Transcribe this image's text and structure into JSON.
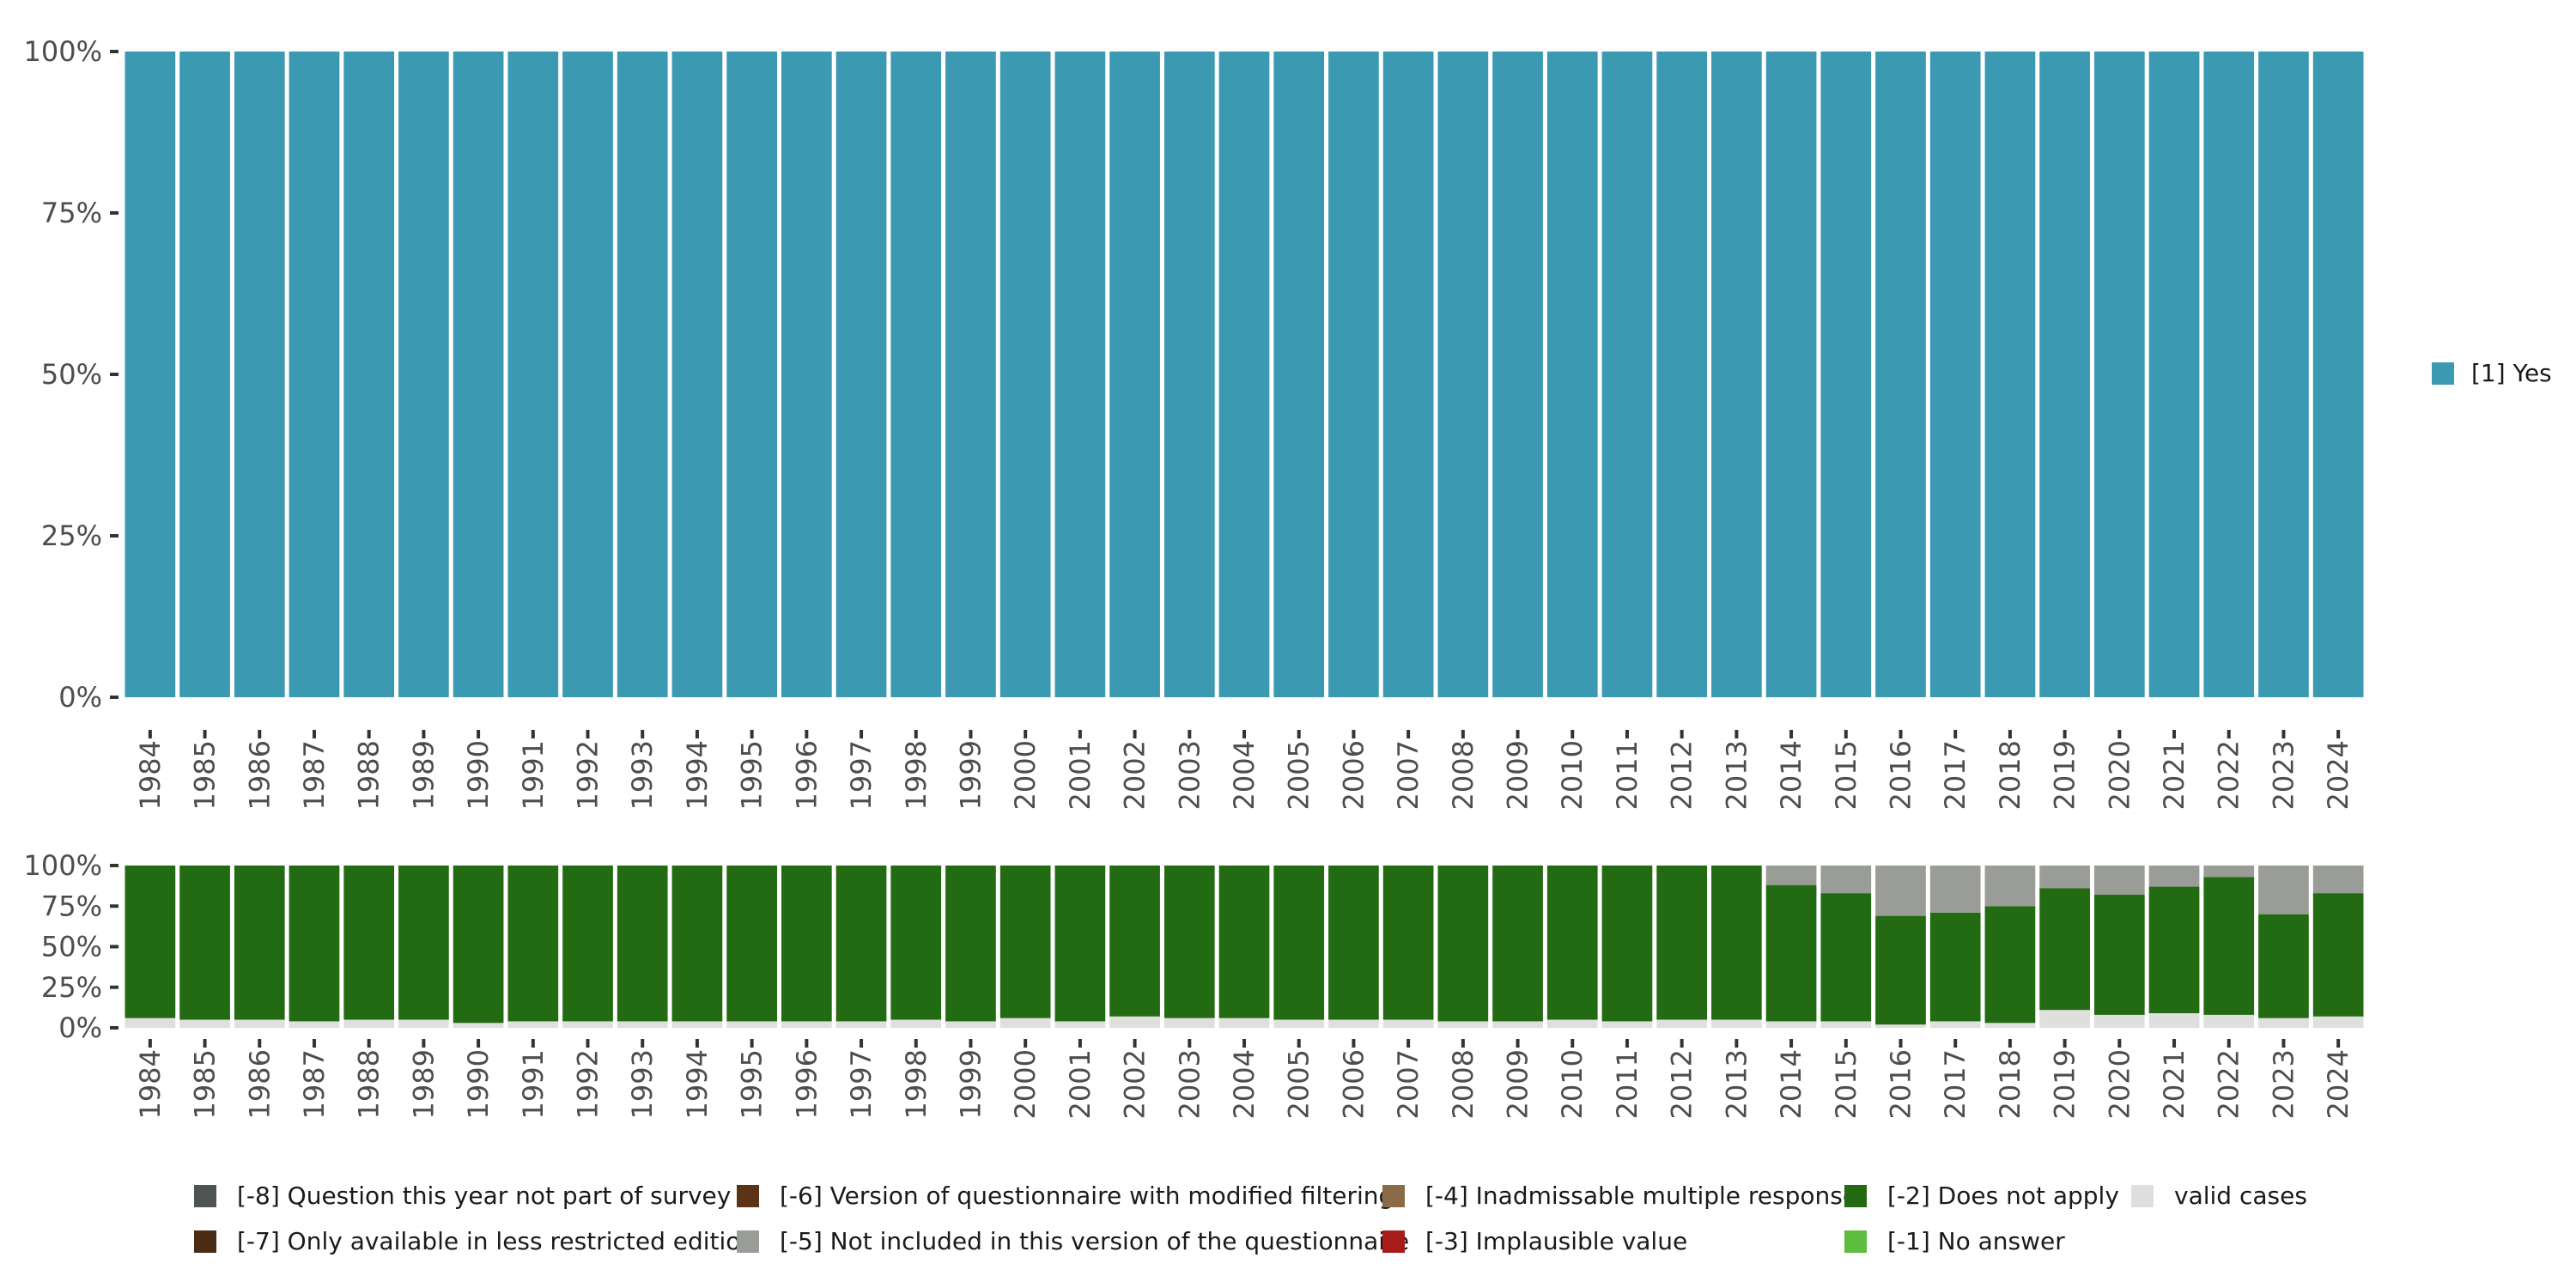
{
  "chart_data": [
    {
      "type": "bar",
      "stacked": true,
      "normalized": true,
      "categories": [
        "1984",
        "1985",
        "1986",
        "1987",
        "1988",
        "1989",
        "1990",
        "1991",
        "1992",
        "1993",
        "1994",
        "1995",
        "1996",
        "1997",
        "1998",
        "1999",
        "2000",
        "2001",
        "2002",
        "2003",
        "2004",
        "2005",
        "2006",
        "2007",
        "2008",
        "2009",
        "2010",
        "2011",
        "2012",
        "2013",
        "2014",
        "2015",
        "2016",
        "2017",
        "2018",
        "2019",
        "2020",
        "2021",
        "2022",
        "2023",
        "2024"
      ],
      "y_ticks": [
        "0%",
        "25%",
        "50%",
        "75%",
        "100%"
      ],
      "ylim": [
        0,
        1
      ],
      "series": [
        {
          "name": "[1] Yes",
          "color": "#3b9ab2",
          "values": [
            1,
            1,
            1,
            1,
            1,
            1,
            1,
            1,
            1,
            1,
            1,
            1,
            1,
            1,
            1,
            1,
            1,
            1,
            1,
            1,
            1,
            1,
            1,
            1,
            1,
            1,
            1,
            1,
            1,
            1,
            1,
            1,
            1,
            1,
            1,
            1,
            1,
            1,
            1,
            1,
            1
          ]
        }
      ],
      "legend": {
        "position": "right",
        "entries": [
          {
            "label": "[1] Yes",
            "color": "#3b9ab2"
          }
        ]
      }
    },
    {
      "type": "bar",
      "stacked": true,
      "normalized": true,
      "categories": [
        "1984",
        "1985",
        "1986",
        "1987",
        "1988",
        "1989",
        "1990",
        "1991",
        "1992",
        "1993",
        "1994",
        "1995",
        "1996",
        "1997",
        "1998",
        "1999",
        "2000",
        "2001",
        "2002",
        "2003",
        "2004",
        "2005",
        "2006",
        "2007",
        "2008",
        "2009",
        "2010",
        "2011",
        "2012",
        "2013",
        "2014",
        "2015",
        "2016",
        "2017",
        "2018",
        "2019",
        "2020",
        "2021",
        "2022",
        "2023",
        "2024"
      ],
      "y_ticks": [
        "0%",
        "25%",
        "50%",
        "75%",
        "100%"
      ],
      "ylim": [
        0,
        1
      ],
      "series": [
        {
          "name": "valid cases",
          "color": "#dfe0dd",
          "values": [
            0.06,
            0.05,
            0.05,
            0.04,
            0.05,
            0.05,
            0.03,
            0.04,
            0.04,
            0.04,
            0.04,
            0.04,
            0.04,
            0.04,
            0.05,
            0.04,
            0.06,
            0.04,
            0.07,
            0.06,
            0.06,
            0.05,
            0.05,
            0.05,
            0.04,
            0.04,
            0.05,
            0.04,
            0.05,
            0.05,
            0.04,
            0.04,
            0.02,
            0.04,
            0.03,
            0.11,
            0.08,
            0.09,
            0.08,
            0.06,
            0.07
          ]
        },
        {
          "name": "[-2] Does not apply",
          "color": "#236b12",
          "values": [
            0.94,
            0.95,
            0.95,
            0.96,
            0.95,
            0.95,
            0.97,
            0.96,
            0.96,
            0.96,
            0.96,
            0.96,
            0.96,
            0.96,
            0.95,
            0.96,
            0.94,
            0.96,
            0.93,
            0.94,
            0.94,
            0.95,
            0.95,
            0.95,
            0.96,
            0.96,
            0.95,
            0.96,
            0.95,
            0.95,
            0.84,
            0.79,
            0.67,
            0.67,
            0.72,
            0.75,
            0.74,
            0.78,
            0.85,
            0.64,
            0.76
          ]
        },
        {
          "name": "[-5] Not included in this version of the questionnaire",
          "color": "#9a9c98",
          "values": [
            0,
            0,
            0,
            0,
            0,
            0,
            0,
            0,
            0,
            0,
            0,
            0,
            0,
            0,
            0,
            0,
            0,
            0,
            0,
            0,
            0,
            0,
            0,
            0,
            0,
            0,
            0,
            0,
            0,
            0,
            0.12,
            0.17,
            0.31,
            0.29,
            0.25,
            0.14,
            0.18,
            0.13,
            0.07,
            0.3,
            0.17
          ]
        }
      ],
      "legend": {
        "position": "bottom",
        "entries": [
          {
            "label": "[-8] Question this year not part of survey",
            "color": "#4e5450"
          },
          {
            "label": "[-6] Version of questionnaire with modified filtering",
            "color": "#5c3317"
          },
          {
            "label": "[-4] Inadmissable multiple response",
            "color": "#8b6b47"
          },
          {
            "label": "[-2] Does not apply",
            "color": "#236b12"
          },
          {
            "label": "valid cases",
            "color": "#dfe0dd"
          },
          {
            "label": "[-7] Only available in less restricted edition",
            "color": "#4a2c14"
          },
          {
            "label": "[-5] Not included in this version of the questionnaire",
            "color": "#9a9c98"
          },
          {
            "label": "[-3] Implausible value",
            "color": "#a81c1c"
          },
          {
            "label": "[-1] No answer",
            "color": "#5cbd3f"
          }
        ]
      }
    }
  ]
}
